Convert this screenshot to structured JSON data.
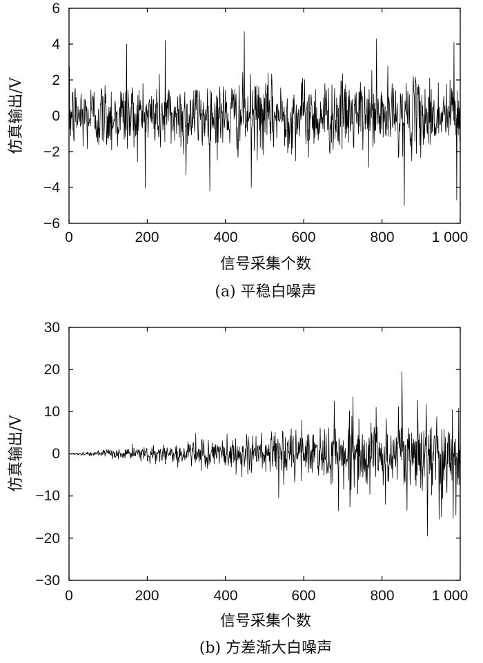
{
  "chart_data": [
    {
      "type": "line",
      "caption": "(a) 平稳白噪声",
      "xlabel": "信号采集个数",
      "ylabel": "仿真输出/V",
      "xlim": [
        0,
        1000
      ],
      "ylim": [
        -6,
        6
      ],
      "x_ticks": [
        0,
        200,
        400,
        600,
        800,
        1000
      ],
      "x_tick_labels": [
        "0",
        "200",
        "400",
        "600",
        "800",
        "1 000"
      ],
      "y_ticks": [
        -6,
        -4,
        -2,
        0,
        2,
        4,
        6
      ],
      "y_tick_labels": [
        "−6",
        "−4",
        "−2",
        "0",
        "2",
        "4",
        "6"
      ],
      "grid": false,
      "series": [
        {
          "color": "#000000",
          "noise": "stationary",
          "std": 1.0,
          "num_points": 1000,
          "peaks": [
            [
              146,
              4.0
            ],
            [
              245,
              4.2
            ],
            [
              447,
              4.7
            ],
            [
              785,
              4.3
            ],
            [
              983,
              4.1
            ],
            [
              856,
              -5.0
            ],
            [
              990,
              -4.7
            ],
            [
              465,
              -4.0
            ],
            [
              298,
              -3.3
            ]
          ]
        }
      ]
    },
    {
      "type": "line",
      "caption": "(b) 方差渐大白噪声",
      "xlabel": "信号采集个数",
      "ylabel": "仿真输出/V",
      "xlim": [
        0,
        1000
      ],
      "ylim": [
        -30,
        30
      ],
      "x_ticks": [
        0,
        200,
        400,
        600,
        800,
        1000
      ],
      "x_tick_labels": [
        "0",
        "200",
        "400",
        "600",
        "800",
        "1 000"
      ],
      "y_ticks": [
        -30,
        -20,
        -10,
        0,
        10,
        20,
        30
      ],
      "y_tick_labels": [
        "−30",
        "−20",
        "−10",
        "0",
        "10",
        "20",
        "30"
      ],
      "grid": false,
      "series": [
        {
          "color": "#000000",
          "noise": "increasing-variance",
          "std_start": 0.1,
          "std_end": 5.5,
          "num_points": 1000,
          "peaks": [
            [
              808,
              20.0
            ],
            [
              850,
              19.5
            ],
            [
              725,
              13.5
            ],
            [
              535,
              13.0
            ],
            [
              915,
              -19.5
            ],
            [
              945,
              -15.5
            ],
            [
              688,
              -13.5
            ],
            [
              808,
              -12.0
            ],
            [
              535,
              -10.5
            ]
          ]
        }
      ]
    }
  ]
}
